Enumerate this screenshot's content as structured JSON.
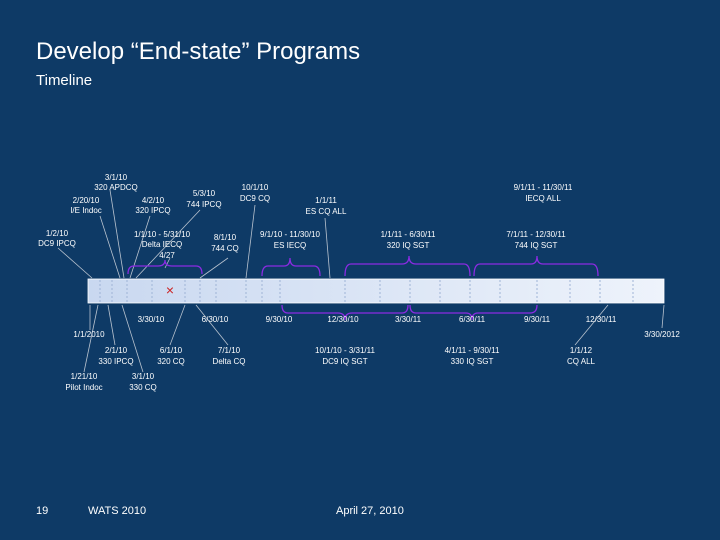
{
  "title": "Develop “End-state” Programs",
  "subtitle": "Timeline",
  "footer": {
    "page_number": "19",
    "event": "WATS 2010",
    "date": "April 27, 2010"
  },
  "colors": {
    "background": "#0e3a66",
    "bar_start": "#c9d8f0",
    "bar_end": "#eef3fb",
    "bracket_purple": "#8a2be2",
    "leader_line": "#b9c3cf",
    "marker_red": "#cc2222"
  },
  "timeline": {
    "start_date": "1/1/2010",
    "end_date": "3/30/2012",
    "ticks": [
      "3/30/10",
      "6/30/10",
      "9/30/10",
      "12/30/10",
      "3/30/11",
      "6/30/11",
      "9/30/11",
      "12/30/11"
    ],
    "marker": {
      "symbol": "×",
      "label": "4/27"
    },
    "events_above": [
      {
        "date": "3/1/10",
        "text": "320 APDCQ"
      },
      {
        "date": "2/20/10",
        "text": "I/E Indoc"
      },
      {
        "date": "4/2/10",
        "text": "320 IPCQ"
      },
      {
        "date": "5/3/10",
        "text": "744 IPCQ"
      },
      {
        "date": "10/1/10",
        "text": "DC9 CQ"
      },
      {
        "date": "1/1/11",
        "text": "ES CQ ALL"
      },
      {
        "date": "1/2/10",
        "text": "DC9 IPCQ"
      },
      {
        "date": "1/1/10 - 5/31/10",
        "text": "Delta IECQ"
      },
      {
        "date": "8/1/10",
        "text": "744 CQ"
      },
      {
        "date": "9/1/10 - 11/30/10",
        "text": "ES IECQ"
      },
      {
        "date": "1/1/11 - 6/30/11",
        "text": "320 IQ SGT"
      },
      {
        "date": "7/1/11 - 12/30/11",
        "text": "744 IQ SGT"
      },
      {
        "date": "9/1/11 - 11/30/11",
        "text": "IECQ ALL"
      }
    ],
    "events_below": [
      {
        "date": "2/1/10",
        "text": "330 IPCQ"
      },
      {
        "date": "6/1/10",
        "text": "320 CQ"
      },
      {
        "date": "7/1/10",
        "text": "Delta CQ"
      },
      {
        "date": "1/21/10",
        "text": "Pilot Indoc"
      },
      {
        "date": "3/1/10",
        "text": "330 CQ"
      },
      {
        "date": "10/1/10 - 3/31/11",
        "text": "DC9 IQ SGT"
      },
      {
        "date": "4/1/11 - 9/30/11",
        "text": "330 IQ SGT"
      },
      {
        "date": "1/1/12",
        "text": "CQ ALL"
      }
    ]
  }
}
